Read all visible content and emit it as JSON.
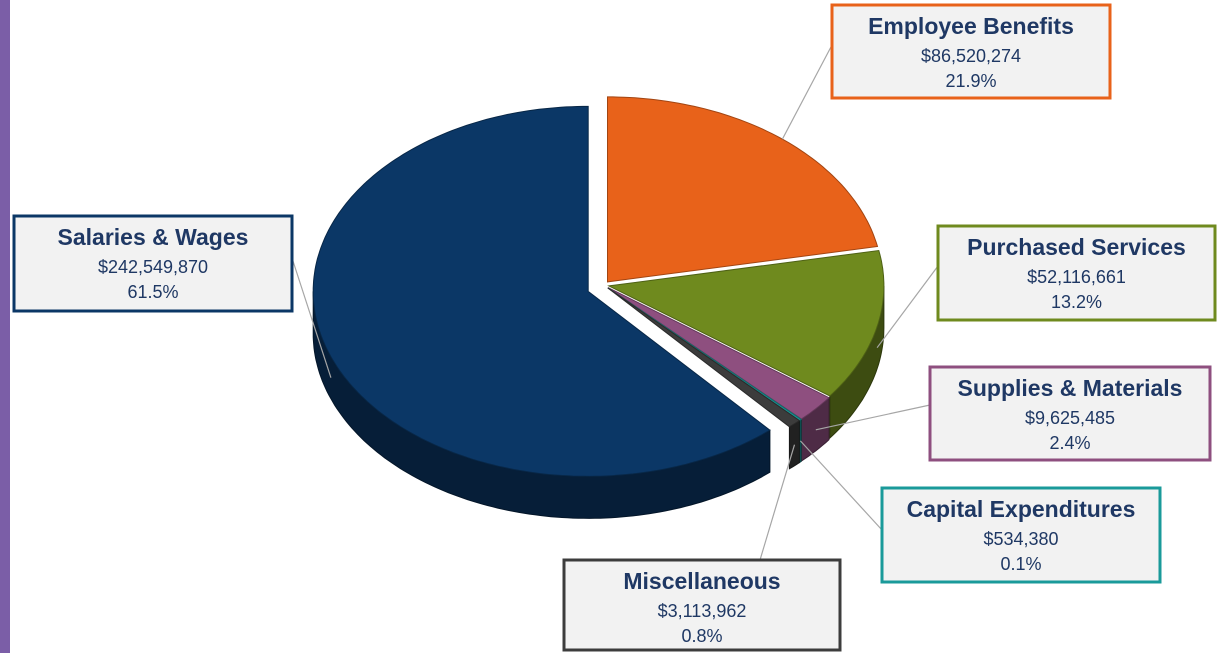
{
  "chart_data": {
    "type": "pie",
    "categories": [
      "Employee Benefits",
      "Purchased Services",
      "Supplies & Materials",
      "Capital Expenditures",
      "Miscellaneous",
      "Salaries & Wages"
    ],
    "values": [
      86520274,
      52116661,
      9625485,
      534380,
      3113962,
      242549870
    ],
    "value_labels": [
      "$86,520,274",
      "$52,116,661",
      "$9,625,485",
      "$534,380",
      "$3,113,962",
      "$242,549,870"
    ],
    "percentages": [
      21.9,
      13.2,
      2.4,
      0.1,
      0.8,
      61.5
    ],
    "percentage_labels": [
      "21.9%",
      "13.2%",
      "2.4%",
      "0.1%",
      "0.8%",
      "61.5%"
    ],
    "colors": [
      "#e8621a",
      "#6f8a1e",
      "#8e4f7f",
      "#1a9a9a",
      "#3c3c3c",
      "#0b3766"
    ]
  }
}
